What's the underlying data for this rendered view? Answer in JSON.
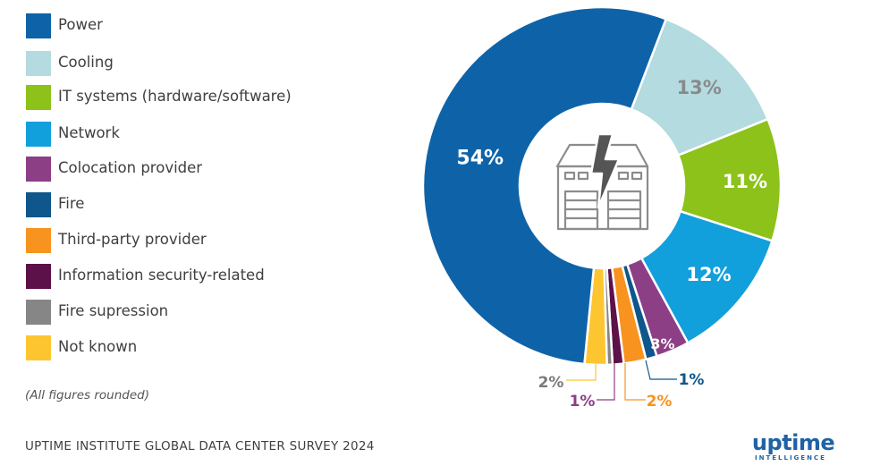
{
  "legend": [
    {
      "label": "Power",
      "color": "#0e63a8"
    },
    {
      "label": "Cooling",
      "color": "#b3dbe0"
    },
    {
      "label": "IT systems (hardware/software)",
      "color": "#8cc21a"
    },
    {
      "label": "Network",
      "color": "#12a0dc"
    },
    {
      "label": "Colocation provider",
      "color": "#8d3f86"
    },
    {
      "label": "Fire",
      "color": "#0e568b"
    },
    {
      "label": "Third-party provider",
      "color": "#f7931e"
    },
    {
      "label": "Information security-related",
      "color": "#5c1149"
    },
    {
      "label": "Fire supression",
      "color": "#868686"
    },
    {
      "label": "Not known",
      "color": "#fdc530"
    }
  ],
  "note": "(All figures rounded)",
  "footer": "UPTIME INSTITUTE GLOBAL DATA CENTER SURVEY 2024",
  "logo": {
    "word": "uptime",
    "sub": "INTELLIGENCE"
  },
  "chart_data": {
    "type": "pie",
    "variant": "donut",
    "title": "",
    "unit": "%",
    "slices": [
      {
        "label": "Cooling",
        "value": 13,
        "display": "13%",
        "color": "#b3dbe0",
        "label_color": "#8a8a8a"
      },
      {
        "label": "IT systems (hardware/software)",
        "value": 11,
        "display": "11%",
        "color": "#8cc21a",
        "label_color": "#ffffff"
      },
      {
        "label": "Network",
        "value": 12,
        "display": "12%",
        "color": "#12a0dc",
        "label_color": "#ffffff"
      },
      {
        "label": "Colocation provider",
        "value": 3,
        "display": "3%",
        "color": "#8d3f86",
        "label_color": "#ffffff"
      },
      {
        "label": "Fire",
        "value": 1,
        "display": "1%",
        "color": "#0e568b",
        "label_color": "#0e568b"
      },
      {
        "label": "Third-party provider",
        "value": 2,
        "display": "2%",
        "color": "#f7931e",
        "label_color": "#f7931e"
      },
      {
        "label": "Information security-related",
        "value": 1,
        "display": "1%",
        "color": "#5c1149",
        "label_color": "#8d3f86"
      },
      {
        "label": "Fire supression",
        "value": 0.5,
        "display": "",
        "color": "#868686",
        "label_color": "#868686"
      },
      {
        "label": "Not known",
        "value": 2,
        "display": "2%",
        "color": "#fdc530",
        "label_color": "#7a7a7a"
      },
      {
        "label": "Power",
        "value": 54,
        "display": "54%",
        "color": "#0e63a8",
        "label_color": "#ffffff"
      }
    ],
    "center_icon": "data-center-lightning-icon",
    "legend_position": "left"
  }
}
